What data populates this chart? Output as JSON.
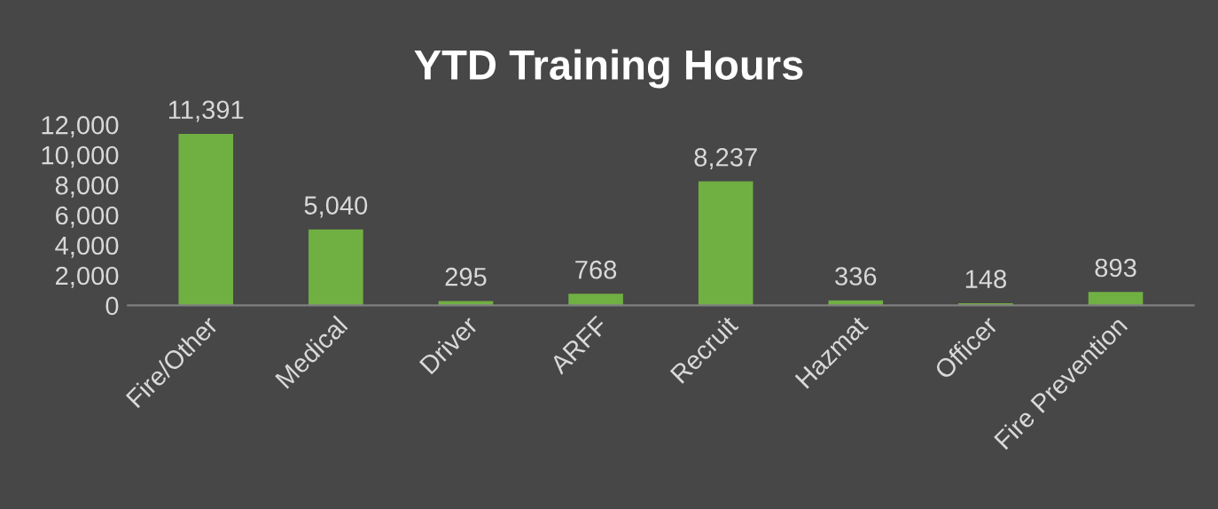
{
  "chart_data": {
    "type": "bar",
    "title": "YTD Training Hours",
    "categories": [
      "Fire/Other",
      "Medical",
      "Driver",
      "ARFF",
      "Recruit",
      "Hazmat",
      "Officer",
      "Fire Prevention"
    ],
    "values": [
      11391,
      5040,
      295,
      768,
      8237,
      336,
      148,
      893
    ],
    "color": "#70b043",
    "ylim": [
      0,
      12000
    ],
    "yticks": [
      {
        "value": 0,
        "label": "0"
      },
      {
        "value": 2000,
        "label": "2,000"
      },
      {
        "value": 4000,
        "label": "4,000"
      },
      {
        "value": 6000,
        "label": "6,000"
      },
      {
        "value": 8000,
        "label": "8,000"
      },
      {
        "value": 10000,
        "label": "10,000"
      },
      {
        "value": 12000,
        "label": "12,000"
      }
    ],
    "value_labels": [
      "11,391",
      "5,040",
      "295",
      "768",
      "8,237",
      "336",
      "148",
      "893"
    ]
  }
}
